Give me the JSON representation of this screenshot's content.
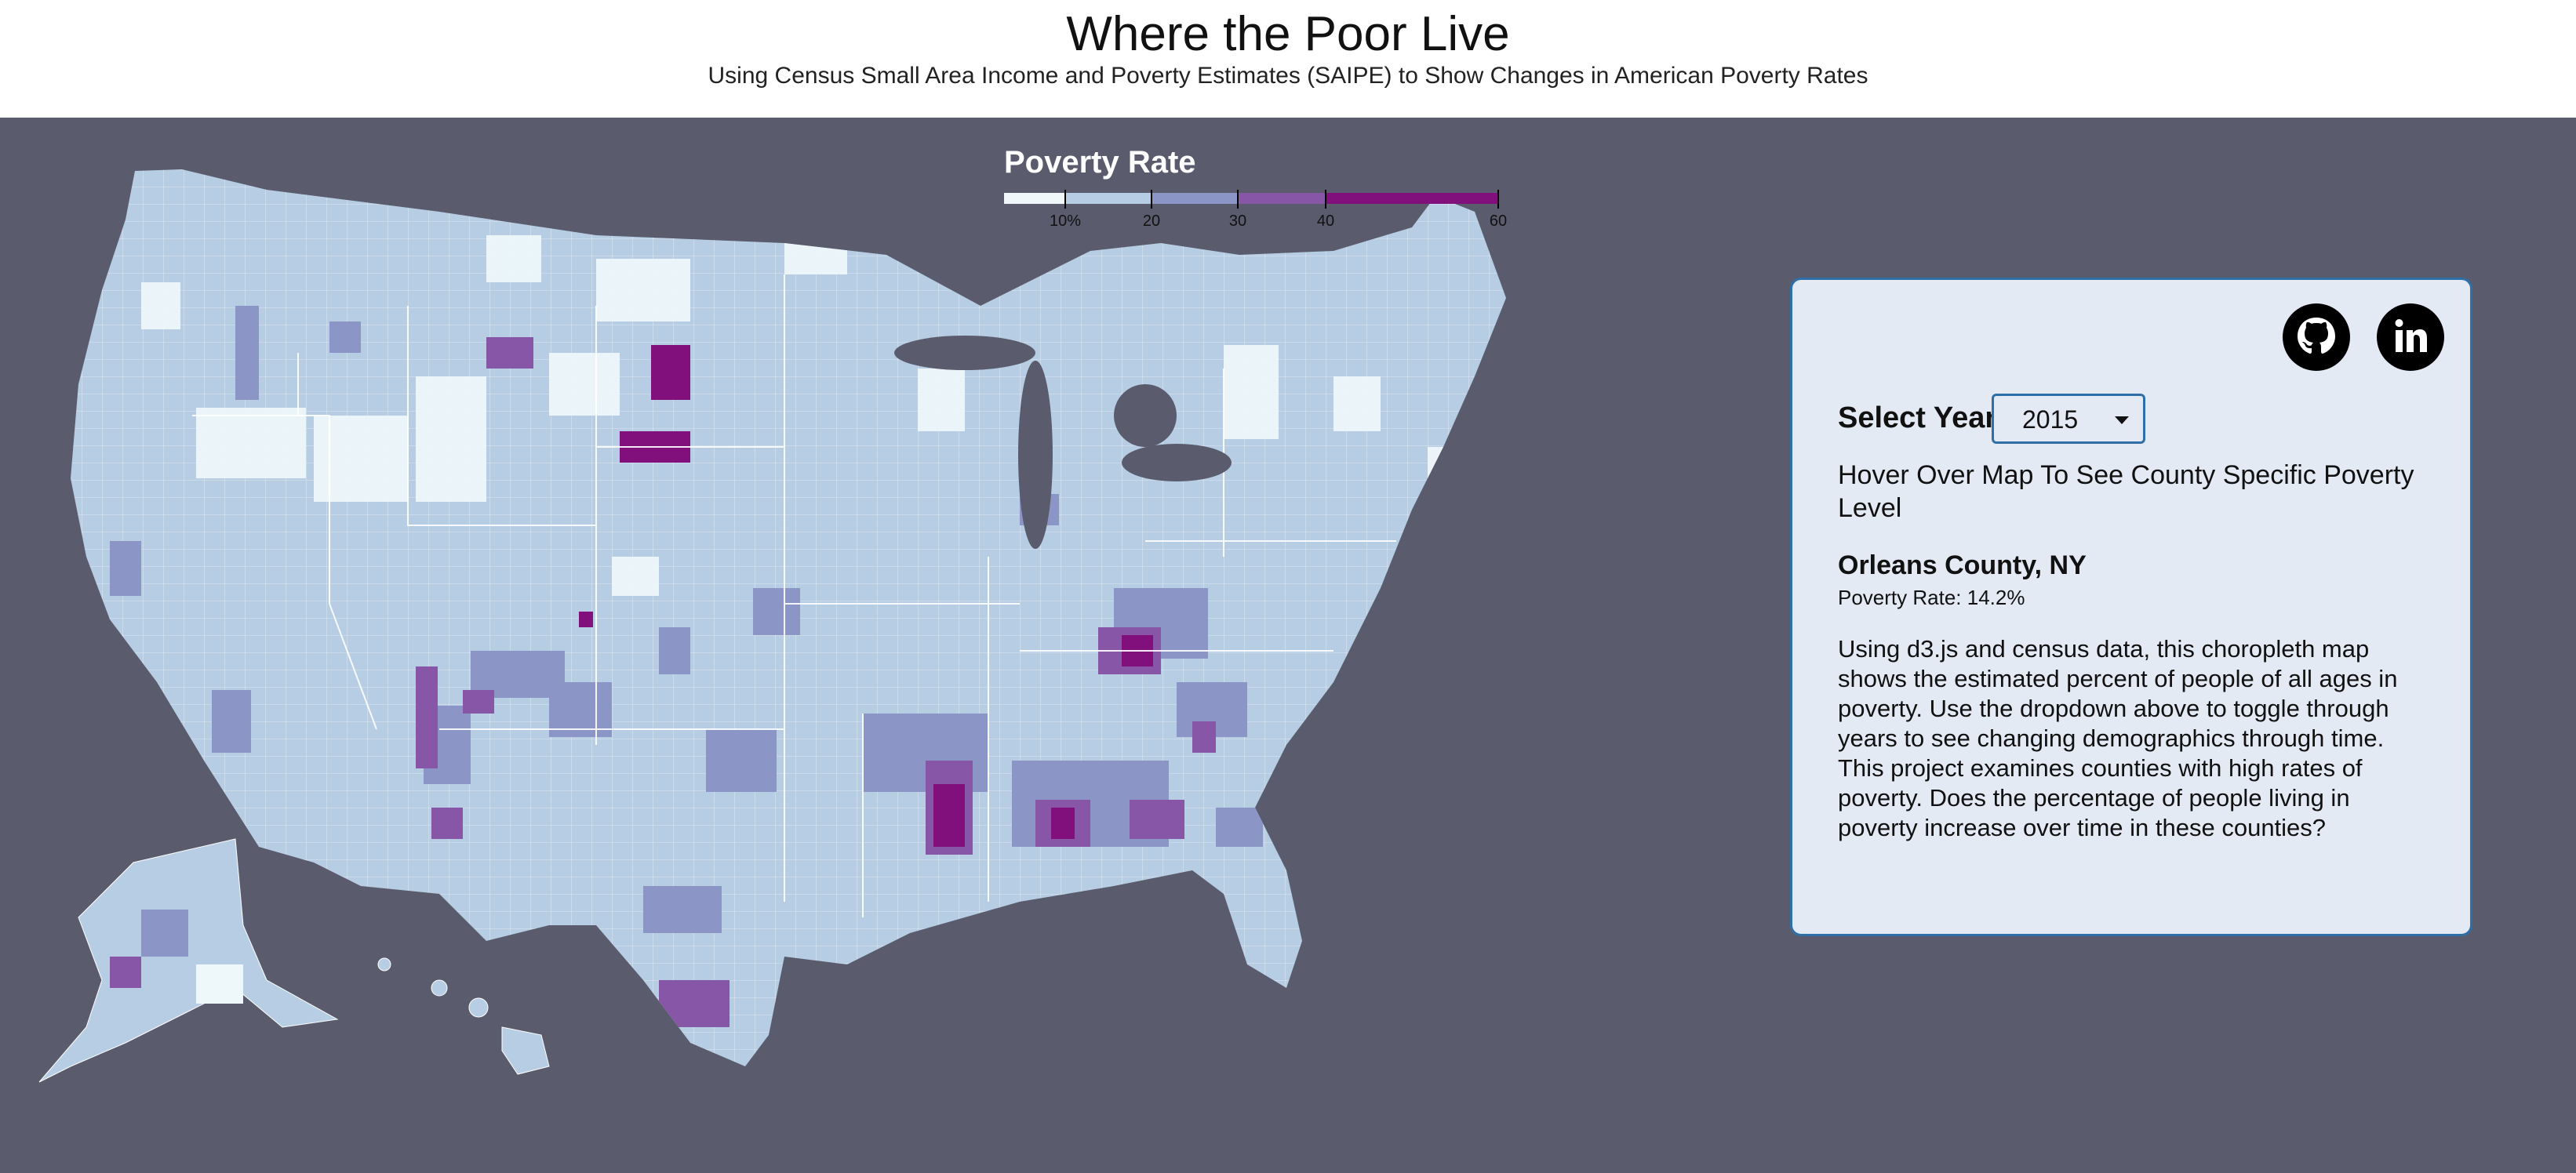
{
  "header": {
    "title": "Where the Poor Live",
    "subtitle": "Using Census Small Area Income and Poverty Estimates (SAIPE) to Show Changes in American Poverty Rates"
  },
  "legend": {
    "title": "Poverty Rate",
    "ticks": [
      "10%",
      "20",
      "30",
      "40",
      "60"
    ],
    "colors": [
      "#f1f8fa",
      "#b6cde3",
      "#8c96c6",
      "#8856a7",
      "#810f7c"
    ]
  },
  "panel": {
    "year_label": "Select Year",
    "year_value": "2015",
    "hover_prompt": "Hover Over Map To See County Specific Poverty Level",
    "county_name": "Orleans County, NY",
    "county_rate": "Poverty Rate: 14.2%",
    "description": "Using d3.js and census data, this choropleth map shows the estimated percent of people of all ages in poverty. Use the dropdown above to toggle through years to see changing demographics through time. This project examines counties with high rates of poverty. Does the percentage of people living in poverty increase over time in these counties?",
    "icons": [
      "github-icon",
      "linkedin-icon"
    ]
  },
  "colors": {
    "background": "#5a5c6d",
    "panel_bg": "#e4eaf4",
    "panel_border": "#2f6fa8"
  }
}
